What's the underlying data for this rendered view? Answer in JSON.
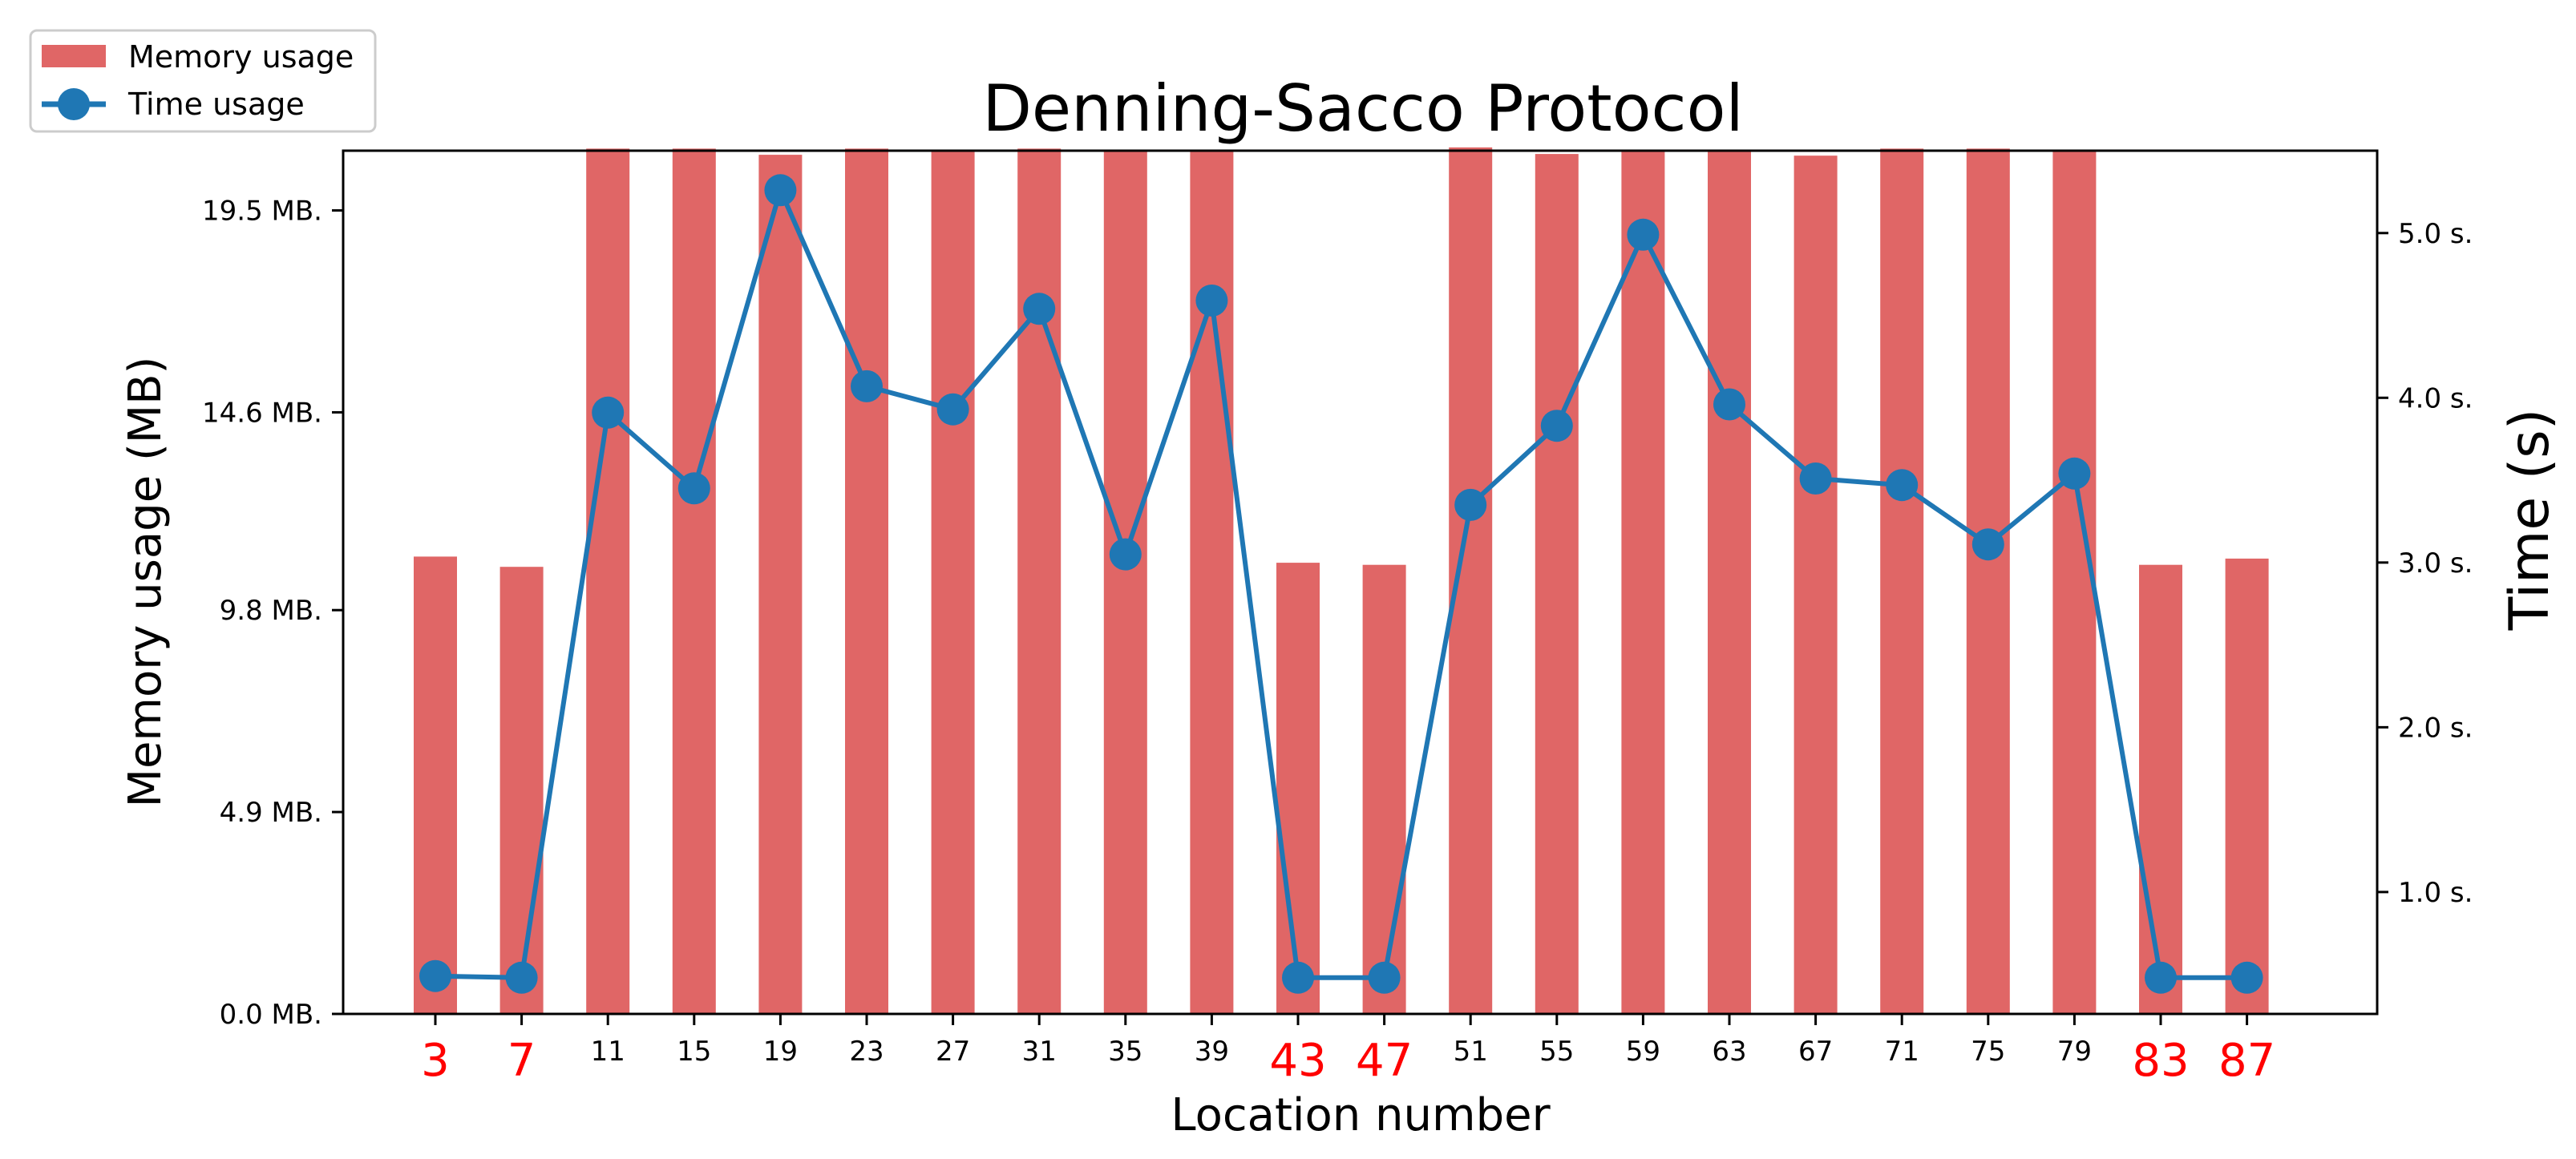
{
  "chart_data": {
    "type": "bar",
    "title": "Denning-Sacco Protocol",
    "xlabel": "Location number",
    "ylabel": "Memory usage (MB)",
    "ylabel_right": "Time (s)",
    "categories": [
      "3",
      "7",
      "11",
      "15",
      "19",
      "23",
      "27",
      "31",
      "35",
      "39",
      "43",
      "47",
      "51",
      "55",
      "59",
      "63",
      "67",
      "71",
      "75",
      "79",
      "83",
      "87"
    ],
    "highlight_categories": [
      "3",
      "7",
      "43",
      "47",
      "83",
      "87"
    ],
    "highlight_color": "#ff0000",
    "ylim": [
      0,
      20.95
    ],
    "ylim_right": [
      0.26,
      5.5
    ],
    "yticks": [
      0,
      4.9,
      9.8,
      14.6,
      19.5
    ],
    "yticklabels": [
      "0.0 MB.",
      "4.9 MB.",
      "9.8 MB.",
      "14.6 MB.",
      "19.5 MB."
    ],
    "yticks_right": [
      1,
      2,
      3,
      4,
      5
    ],
    "yticklabels_right": [
      "1.0 s.",
      "2.0 s.",
      "3.0 s.",
      "4.0 s.",
      "5.0 s."
    ],
    "legend_position": "top-left",
    "series": [
      {
        "name": "Memory usage",
        "type": "bar",
        "axis": "left",
        "color": "#e06666",
        "values": [
          11.1,
          10.85,
          21.0,
          21.0,
          20.85,
          21.0,
          20.93,
          21.0,
          20.97,
          20.93,
          10.95,
          10.9,
          21.03,
          20.87,
          20.97,
          20.93,
          20.83,
          21.0,
          21.0,
          20.97,
          10.9,
          11.05
        ]
      },
      {
        "name": "Time usage",
        "type": "line",
        "axis": "right",
        "color": "#1f77b4",
        "values": [
          0.49,
          0.48,
          3.91,
          3.45,
          5.26,
          4.07,
          3.93,
          4.54,
          3.05,
          4.59,
          0.48,
          0.48,
          3.35,
          3.83,
          4.99,
          3.96,
          3.51,
          3.47,
          3.11,
          3.54,
          0.48,
          0.48
        ]
      }
    ]
  }
}
